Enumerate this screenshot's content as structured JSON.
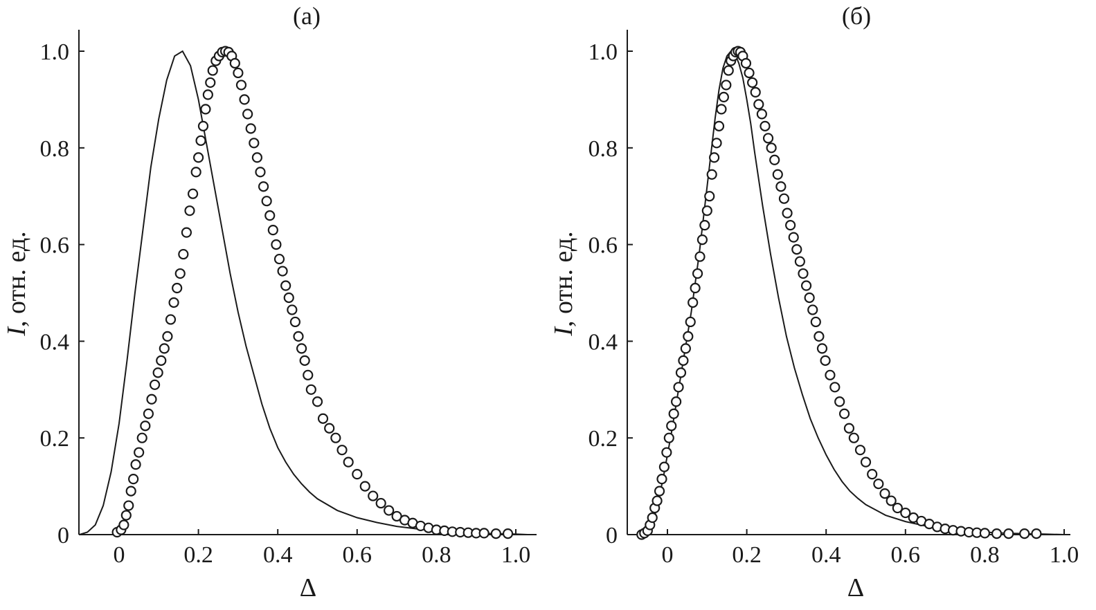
{
  "chart_data": [
    {
      "type": "line",
      "title": "(а)",
      "xlabel": "Δ",
      "ylabel_italic": "I",
      "ylabel": ", отн. ед.",
      "xlim": [
        -0.1,
        1.05
      ],
      "ylim": [
        0,
        1.03
      ],
      "xticks": [
        0,
        0.2,
        0.4,
        0.6,
        0.8,
        1.0
      ],
      "xtick_labels": [
        "0",
        "0.2",
        "0.4",
        "0.6",
        "0.8",
        "1.0"
      ],
      "yticks": [
        0,
        0.2,
        0.4,
        0.6,
        0.8,
        1.0
      ],
      "ytick_labels": [
        "0",
        "0.2",
        "0.4",
        "0.6",
        "0.8",
        "1.0"
      ],
      "grid": false,
      "series": [
        {
          "style": "line",
          "x": [
            -0.1,
            -0.08,
            -0.06,
            -0.04,
            -0.02,
            0.0,
            0.02,
            0.04,
            0.06,
            0.08,
            0.1,
            0.12,
            0.14,
            0.16,
            0.18,
            0.2,
            0.22,
            0.24,
            0.26,
            0.28,
            0.3,
            0.32,
            0.34,
            0.36,
            0.38,
            0.4,
            0.42,
            0.44,
            0.46,
            0.48,
            0.5,
            0.55,
            0.6,
            0.65,
            0.7,
            0.75,
            0.8,
            0.85,
            0.9,
            0.95,
            1.0,
            1.03
          ],
          "y": [
            0.0,
            0.005,
            0.02,
            0.06,
            0.13,
            0.23,
            0.36,
            0.5,
            0.63,
            0.76,
            0.86,
            0.94,
            0.99,
            1.0,
            0.97,
            0.9,
            0.81,
            0.72,
            0.63,
            0.54,
            0.46,
            0.39,
            0.33,
            0.27,
            0.22,
            0.18,
            0.15,
            0.125,
            0.105,
            0.088,
            0.074,
            0.05,
            0.035,
            0.025,
            0.017,
            0.012,
            0.008,
            0.005,
            0.003,
            0.002,
            0.001,
            0.0
          ]
        },
        {
          "style": "markers",
          "x": [
            -0.005,
            0.005,
            0.012,
            0.018,
            0.024,
            0.03,
            0.036,
            0.042,
            0.05,
            0.058,
            0.066,
            0.074,
            0.082,
            0.09,
            0.098,
            0.106,
            0.114,
            0.122,
            0.13,
            0.138,
            0.146,
            0.154,
            0.162,
            0.17,
            0.178,
            0.186,
            0.194,
            0.2,
            0.206,
            0.212,
            0.218,
            0.224,
            0.23,
            0.236,
            0.244,
            0.252,
            0.26,
            0.268,
            0.276,
            0.284,
            0.292,
            0.3,
            0.308,
            0.316,
            0.324,
            0.332,
            0.34,
            0.348,
            0.356,
            0.364,
            0.372,
            0.38,
            0.388,
            0.396,
            0.404,
            0.412,
            0.42,
            0.428,
            0.436,
            0.444,
            0.452,
            0.46,
            0.468,
            0.476,
            0.484,
            0.5,
            0.514,
            0.53,
            0.546,
            0.562,
            0.578,
            0.6,
            0.62,
            0.64,
            0.66,
            0.68,
            0.7,
            0.72,
            0.74,
            0.76,
            0.78,
            0.8,
            0.82,
            0.84,
            0.86,
            0.88,
            0.9,
            0.92,
            0.95,
            0.98
          ],
          "y": [
            0.005,
            0.01,
            0.02,
            0.04,
            0.06,
            0.09,
            0.115,
            0.145,
            0.17,
            0.2,
            0.225,
            0.25,
            0.28,
            0.31,
            0.335,
            0.36,
            0.385,
            0.41,
            0.445,
            0.48,
            0.51,
            0.54,
            0.58,
            0.625,
            0.67,
            0.705,
            0.75,
            0.78,
            0.815,
            0.845,
            0.88,
            0.91,
            0.935,
            0.96,
            0.98,
            0.99,
            0.998,
            1.0,
            0.998,
            0.99,
            0.975,
            0.955,
            0.93,
            0.9,
            0.87,
            0.84,
            0.81,
            0.78,
            0.75,
            0.72,
            0.69,
            0.66,
            0.63,
            0.6,
            0.57,
            0.545,
            0.515,
            0.49,
            0.465,
            0.44,
            0.41,
            0.385,
            0.36,
            0.33,
            0.3,
            0.275,
            0.24,
            0.22,
            0.2,
            0.175,
            0.15,
            0.125,
            0.1,
            0.08,
            0.065,
            0.05,
            0.038,
            0.03,
            0.024,
            0.018,
            0.014,
            0.01,
            0.008,
            0.006,
            0.005,
            0.004,
            0.003,
            0.003,
            0.002,
            0.002
          ]
        }
      ]
    },
    {
      "type": "line",
      "title": "(б)",
      "xlabel": "Δ",
      "ylabel_italic": "I",
      "ylabel": ", отн. ед.",
      "xlim": [
        -0.1,
        1.03
      ],
      "ylim": [
        0,
        1.03
      ],
      "xticks": [
        0,
        0.2,
        0.4,
        0.6,
        0.8,
        1.0
      ],
      "xtick_labels": [
        "0",
        "0.2",
        "0.4",
        "0.6",
        "0.8",
        "1.0"
      ],
      "yticks": [
        0,
        0.2,
        0.4,
        0.6,
        0.8,
        1.0
      ],
      "ytick_labels": [
        "0",
        "0.2",
        "0.4",
        "0.6",
        "0.8",
        "1.0"
      ],
      "grid": false,
      "series": [
        {
          "style": "line",
          "x": [
            -0.065,
            -0.05,
            -0.04,
            -0.03,
            -0.02,
            -0.01,
            0.0,
            0.01,
            0.02,
            0.03,
            0.04,
            0.05,
            0.06,
            0.07,
            0.08,
            0.09,
            0.1,
            0.11,
            0.12,
            0.13,
            0.14,
            0.15,
            0.16,
            0.17,
            0.18,
            0.19,
            0.2,
            0.21,
            0.22,
            0.24,
            0.26,
            0.28,
            0.3,
            0.32,
            0.34,
            0.36,
            0.38,
            0.4,
            0.42,
            0.44,
            0.46,
            0.48,
            0.5,
            0.55,
            0.6,
            0.65,
            0.7,
            0.75,
            0.8,
            0.85,
            0.9,
            0.95,
            1.0
          ],
          "y": [
            0.0,
            0.005,
            0.02,
            0.045,
            0.08,
            0.12,
            0.165,
            0.21,
            0.26,
            0.31,
            0.36,
            0.41,
            0.46,
            0.52,
            0.58,
            0.65,
            0.72,
            0.79,
            0.86,
            0.92,
            0.965,
            0.99,
            1.0,
            0.995,
            0.975,
            0.945,
            0.9,
            0.85,
            0.79,
            0.68,
            0.58,
            0.49,
            0.41,
            0.345,
            0.29,
            0.24,
            0.2,
            0.165,
            0.135,
            0.11,
            0.09,
            0.075,
            0.062,
            0.04,
            0.027,
            0.018,
            0.012,
            0.008,
            0.005,
            0.003,
            0.002,
            0.001,
            0.0
          ]
        },
        {
          "style": "markers",
          "x": [
            -0.065,
            -0.058,
            -0.05,
            -0.044,
            -0.038,
            -0.032,
            -0.026,
            -0.02,
            -0.014,
            -0.008,
            -0.002,
            0.004,
            0.01,
            0.016,
            0.022,
            0.028,
            0.034,
            0.04,
            0.046,
            0.052,
            0.058,
            0.064,
            0.07,
            0.076,
            0.082,
            0.088,
            0.094,
            0.1,
            0.106,
            0.112,
            0.118,
            0.124,
            0.13,
            0.136,
            0.142,
            0.148,
            0.154,
            0.16,
            0.166,
            0.172,
            0.178,
            0.184,
            0.19,
            0.198,
            0.206,
            0.214,
            0.222,
            0.23,
            0.238,
            0.246,
            0.254,
            0.262,
            0.27,
            0.278,
            0.286,
            0.294,
            0.302,
            0.31,
            0.318,
            0.326,
            0.334,
            0.342,
            0.35,
            0.358,
            0.366,
            0.374,
            0.382,
            0.39,
            0.398,
            0.41,
            0.422,
            0.434,
            0.446,
            0.458,
            0.47,
            0.486,
            0.5,
            0.516,
            0.532,
            0.548,
            0.564,
            0.58,
            0.6,
            0.62,
            0.64,
            0.66,
            0.68,
            0.7,
            0.72,
            0.74,
            0.76,
            0.78,
            0.8,
            0.83,
            0.86,
            0.9,
            0.93
          ],
          "y": [
            0.0,
            0.003,
            0.008,
            0.02,
            0.035,
            0.055,
            0.07,
            0.09,
            0.115,
            0.14,
            0.17,
            0.2,
            0.225,
            0.25,
            0.275,
            0.305,
            0.335,
            0.36,
            0.385,
            0.41,
            0.44,
            0.48,
            0.51,
            0.54,
            0.575,
            0.61,
            0.64,
            0.67,
            0.7,
            0.745,
            0.78,
            0.81,
            0.845,
            0.88,
            0.905,
            0.93,
            0.96,
            0.98,
            0.99,
            0.998,
            1.0,
            0.998,
            0.99,
            0.975,
            0.955,
            0.935,
            0.915,
            0.89,
            0.87,
            0.845,
            0.82,
            0.8,
            0.775,
            0.745,
            0.72,
            0.695,
            0.665,
            0.64,
            0.615,
            0.59,
            0.565,
            0.54,
            0.515,
            0.49,
            0.465,
            0.44,
            0.41,
            0.385,
            0.36,
            0.33,
            0.305,
            0.275,
            0.25,
            0.22,
            0.2,
            0.175,
            0.15,
            0.125,
            0.105,
            0.085,
            0.07,
            0.055,
            0.045,
            0.035,
            0.028,
            0.022,
            0.016,
            0.012,
            0.009,
            0.007,
            0.005,
            0.004,
            0.003,
            0.002,
            0.002,
            0.002,
            0.002
          ]
        }
      ]
    }
  ]
}
